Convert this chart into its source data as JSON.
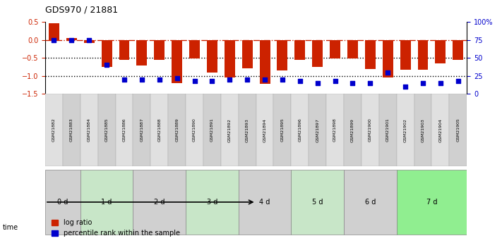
{
  "title": "GDS970 / 21881",
  "samples": [
    "GSM21882",
    "GSM21883",
    "GSM21884",
    "GSM21885",
    "GSM21886",
    "GSM21887",
    "GSM21888",
    "GSM21889",
    "GSM21890",
    "GSM21891",
    "GSM21892",
    "GSM21893",
    "GSM21894",
    "GSM21895",
    "GSM21896",
    "GSM21897",
    "GSM21898",
    "GSM21899",
    "GSM21900",
    "GSM21901",
    "GSM21902",
    "GSM21903",
    "GSM21904",
    "GSM21905"
  ],
  "log_ratio": [
    0.47,
    0.05,
    -0.08,
    -0.75,
    -0.55,
    -0.72,
    -0.55,
    -1.2,
    -0.52,
    -0.9,
    -1.05,
    -0.78,
    -1.22,
    -0.85,
    -0.55,
    -0.75,
    -0.52,
    -0.52,
    -0.8,
    -1.05,
    -0.82,
    -0.82,
    -0.65,
    -0.55
  ],
  "pct_rank": [
    75,
    75,
    75,
    40,
    20,
    20,
    20,
    22,
    18,
    18,
    20,
    20,
    20,
    20,
    18,
    15,
    18,
    15,
    15,
    30,
    10,
    15,
    15,
    18
  ],
  "time_groups": [
    {
      "label": "0 d",
      "start": 0,
      "end": 2,
      "color": "#d0d0d0"
    },
    {
      "label": "1 d",
      "start": 2,
      "end": 5,
      "color": "#c8e6c8"
    },
    {
      "label": "2 d",
      "start": 5,
      "end": 8,
      "color": "#d0d0d0"
    },
    {
      "label": "3 d",
      "start": 8,
      "end": 11,
      "color": "#c8e6c8"
    },
    {
      "label": "4 d",
      "start": 11,
      "end": 14,
      "color": "#d0d0d0"
    },
    {
      "label": "5 d",
      "start": 14,
      "end": 17,
      "color": "#c8e6c8"
    },
    {
      "label": "6 d",
      "start": 17,
      "end": 20,
      "color": "#d0d0d0"
    },
    {
      "label": "7 d",
      "start": 20,
      "end": 24,
      "color": "#90ee90"
    }
  ],
  "ylim_left": [
    -1.5,
    0.5
  ],
  "ylim_right": [
    0,
    100
  ],
  "bar_color": "#cc2200",
  "pct_color": "#0000cc",
  "hline_y": 0.0,
  "dotted_lines": [
    -0.5,
    -1.0
  ],
  "right_ticks": [
    0,
    25,
    50,
    75,
    100
  ],
  "right_tick_labels": [
    "0",
    "25",
    "50",
    "75",
    "100%"
  ]
}
